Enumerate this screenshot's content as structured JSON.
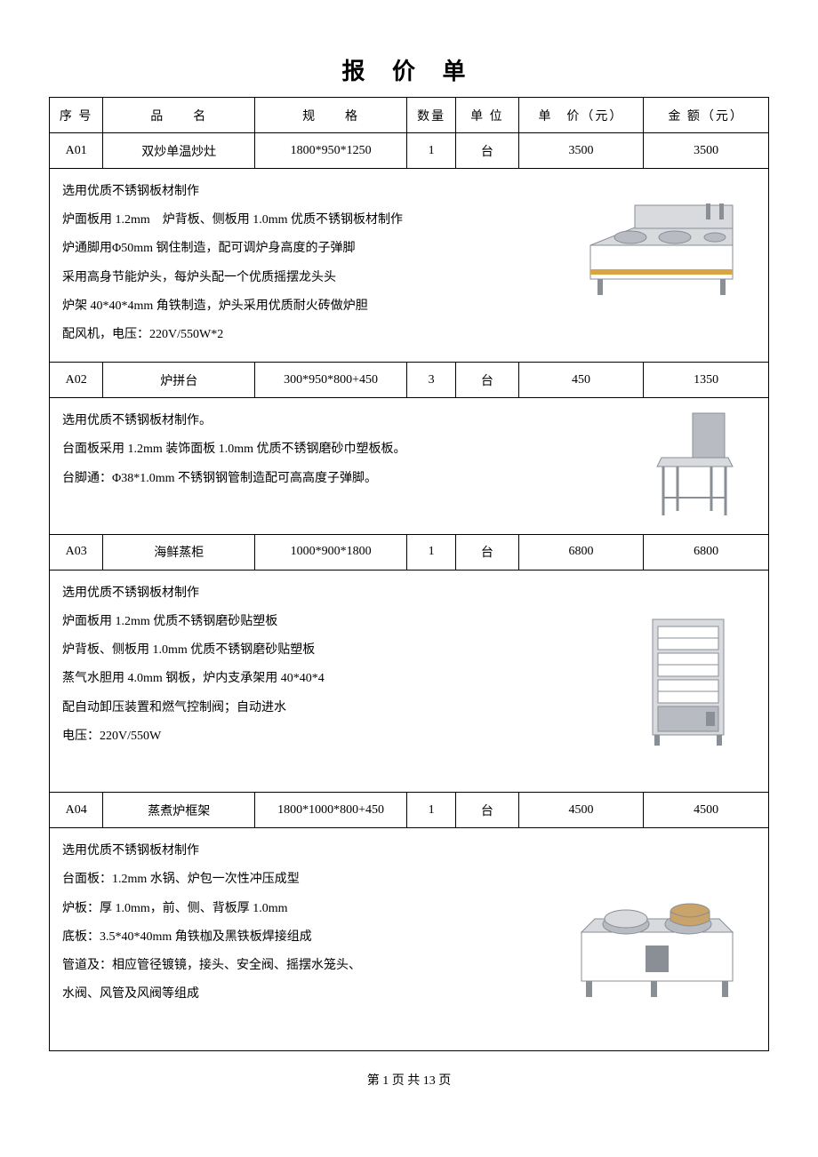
{
  "title": "报 价 单",
  "columns": {
    "seq": "序 号",
    "name": "品　　名",
    "spec": "规　　格",
    "qty": "数量",
    "unit": "单  位",
    "price": "单　价（元）",
    "amount": "金 额（元）"
  },
  "rows": [
    {
      "seq": "A01",
      "name": "双炒单温炒灶",
      "spec": "1800*950*1250",
      "qty": "1",
      "unit": "台",
      "price": "3500",
      "amount": "3500",
      "desc_lines": [
        "选用优质不锈钢板材制作",
        "炉面板用 1.2mm　炉背板、侧板用 1.0mm 优质不锈钢板材制作",
        "炉通脚用Φ50mm 钢住制造，配可调炉身高度的子弹脚",
        "采用高身节能炉头，每炉头配一个优质摇摆龙头头",
        "炉架 40*40*4mm 角铁制造，炉头采用优质耐火砖做炉胆",
        "配风机，电压：220V/550W*2"
      ],
      "img": "stove1",
      "img_top_pct": 42
    },
    {
      "seq": "A02",
      "name": "炉拼台",
      "spec": "300*950*800+450",
      "qty": "3",
      "unit": "台",
      "price": "450",
      "amount": "1350",
      "desc_lines": [
        "选用优质不锈钢板材制作。",
        "台面板采用 1.2mm 装饰面板 1.0mm 优质不锈钢磨砂巾塑板板。",
        "台脚通：Φ38*1.0mm 不锈钢钢管制造配可高高度子弹脚。",
        ""
      ],
      "img": "table1",
      "img_top_pct": 50
    },
    {
      "seq": "A03",
      "name": "海鲜蒸柜",
      "spec": "1000*900*1800",
      "qty": "1",
      "unit": "台",
      "price": "6800",
      "amount": "6800",
      "desc_lines": [
        "选用优质不锈钢板材制作",
        "炉面板用 1.2mm 优质不锈钢磨砂贴塑板",
        "炉背板、侧板用 1.0mm 优质不锈钢磨砂贴塑板",
        "蒸气水胆用 4.0mm 钢板，炉内支承架用 40*40*4",
        "配自动卸压装置和燃气控制阀；自动进水",
        "电压：220V/550W",
        ""
      ],
      "img": "steamer",
      "img_top_pct": 50
    },
    {
      "seq": "A04",
      "name": "蒸煮炉框架",
      "spec": "1800*1000*800+450",
      "qty": "1",
      "unit": "台",
      "price": "4500",
      "amount": "4500",
      "desc_lines": [
        "选用优质不锈钢板材制作",
        "台面板：1.2mm 水锅、炉包一次性冲压成型",
        "炉板：厚 1.0mm，前、侧、背板厚 1.0mm",
        "底板：3.5*40*40mm 角铁枷及黑铁板焊接组成",
        "管道及：相应管径镀镜，接头、安全阀、摇摆水笼头、",
        "水阀、风管及风阀等组成",
        ""
      ],
      "img": "stove2",
      "img_top_pct": 55
    }
  ],
  "footer": "第 1 页 共 13 页",
  "colors": {
    "steel_light": "#d8dade",
    "steel_mid": "#b8bcc2",
    "steel_dark": "#8a8f96",
    "gold": "#d9a441",
    "white": "#ffffff",
    "ink": "#000000"
  }
}
